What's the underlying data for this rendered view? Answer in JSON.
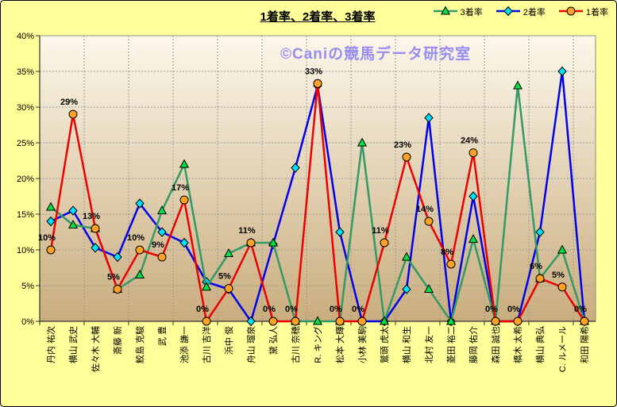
{
  "title": "1着率、2着率、3着率",
  "watermark": "©Caniの競馬データ研究室",
  "colors": {
    "background": "#ffff99",
    "plot_gradient_top": "#fcf7ea",
    "plot_gradient_bottom": "#c9ad7e",
    "gridline": "#9b9b9b",
    "axis": "#333333",
    "watermark": "#988df2",
    "text": "#000000"
  },
  "chart_data": {
    "type": "line",
    "title": "1着率、2着率、3着率",
    "xlabel": "",
    "ylabel": "",
    "ylim": [
      0,
      40
    ],
    "ytick_step": 5,
    "ytick_labels": [
      "0%",
      "5%",
      "10%",
      "15%",
      "20%",
      "25%",
      "30%",
      "35%",
      "40%"
    ],
    "grid": true,
    "legend_position": "top-right",
    "categories": [
      "丹内 祐次",
      "横山 武史",
      "佐々木 大輔",
      "斎藤 新",
      "鮫島 克駿",
      "武 豊",
      "池添 謙一",
      "古川 吉洋",
      "浜中 俊",
      "舟山 瑠泉",
      "黛 弘人",
      "古川 奈穂",
      "R. キング",
      "松本 大輝",
      "小林 美駒",
      "鷲頭 虎太",
      "横山 和生",
      "北村 友一",
      "菱田 裕二",
      "藤岡 佑介",
      "森田 誠也",
      "橋木 太希",
      "横山 典弘",
      "C. ルメール",
      "和田 陽希"
    ],
    "series": [
      {
        "name": "3着率",
        "key": "third-place-rate",
        "marker": "triangle",
        "line_color": "#339966",
        "marker_color": "#00e040",
        "values": [
          16,
          13.5,
          13,
          4.5,
          6.5,
          15.5,
          22,
          4.8,
          9.5,
          11,
          11,
          0,
          0,
          0,
          25,
          0,
          9,
          4.5,
          0,
          11.5,
          0,
          33,
          6,
          10,
          0
        ]
      },
      {
        "name": "2着率",
        "key": "second-place-rate",
        "marker": "diamond",
        "line_color": "#0000ee",
        "marker_color": "#00e0ff",
        "values": [
          14,
          15.5,
          10.3,
          9,
          16.5,
          12.5,
          11,
          5.5,
          4.5,
          0,
          10.8,
          21.5,
          33,
          12.5,
          0,
          0,
          4.5,
          28.5,
          0,
          17.5,
          0,
          0,
          12.5,
          35,
          0
        ]
      },
      {
        "name": "1着率",
        "key": "first-place-rate",
        "marker": "circle",
        "line_color": "#ee0000",
        "marker_color": "#ffa226",
        "values": [
          10,
          29,
          13,
          4.5,
          10,
          9,
          17,
          0,
          4.6,
          11,
          0,
          0,
          33.3,
          0,
          0,
          11,
          23,
          14,
          8,
          23.6,
          0,
          0,
          6,
          4.8,
          0
        ],
        "data_labels": [
          "10%",
          "29%",
          "13%",
          "5%",
          "10%",
          "9%",
          "17%",
          "0%",
          "5%",
          "11%",
          "0%",
          "0%",
          "33%",
          "0%",
          "0%",
          "11%",
          "23%",
          "14%",
          "8%",
          "24%",
          "0%",
          "0%",
          "6%",
          "5%",
          "0%"
        ]
      }
    ]
  }
}
